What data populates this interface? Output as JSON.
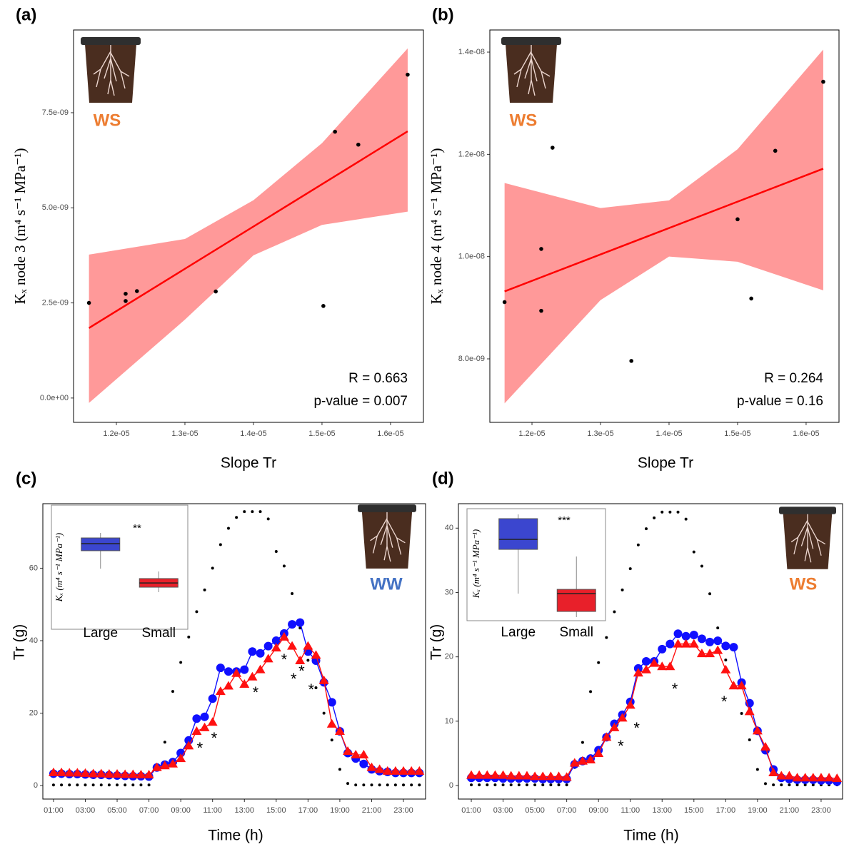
{
  "chart_data": [
    {
      "type": "scatter",
      "panel_label": "(a)",
      "xlabel": "Slope Tr",
      "ylabel": "Kₓ node 3 (m⁴ s⁻¹ MPa⁻¹)",
      "treatment": "WS",
      "treatment_color": "#ed7d31",
      "x": [
        1.16e-05,
        1.2135e-05,
        1.2135e-05,
        1.23e-05,
        1.345e-05,
        1.502e-05,
        1.519e-05,
        1.553e-05,
        1.625e-05
      ],
      "values": [
        2.5e-09,
        2.74e-09,
        2.55e-09,
        2.81e-09,
        2.8e-09,
        2.42e-09,
        7e-09,
        6.66e-09,
        8.5e-09
      ],
      "color": "#000000",
      "fit": {
        "color": "#ff0000",
        "band_color": "#ff9999",
        "x": [
          1.16e-05,
          1.625e-05
        ],
        "values": [
          1.84e-09,
          7.01e-09
        ],
        "band_x": [
          1.16e-05,
          1.3e-05,
          1.4e-05,
          1.5e-05,
          1.625e-05
        ],
        "band_upper": [
          3.77e-09,
          4.18e-09,
          5.2e-09,
          6.7e-09,
          9.19e-09
        ],
        "band_lower": [
          -1.3e-10,
          2.06e-09,
          3.75e-09,
          4.55e-09,
          4.9e-09
        ]
      },
      "annotations": [
        "R = 0.663",
        "p-value = 0.007"
      ],
      "xlim": [
        1.1375e-05,
        1.648e-05
      ],
      "ylim": [
        -6.4e-10,
        9.675e-09
      ],
      "xticks": [
        {
          "value": 1.2e-05,
          "label": "1.2e-05"
        },
        {
          "value": 1.3e-05,
          "label": "1.3e-05"
        },
        {
          "value": 1.4e-05,
          "label": "1.4e-05"
        },
        {
          "value": 1.5e-05,
          "label": "1.5e-05"
        },
        {
          "value": 1.6e-05,
          "label": "1.6e-05"
        }
      ],
      "yticks": [
        {
          "value": 0,
          "label": "0.0e+00"
        },
        {
          "value": 2.5e-09,
          "label": "2.5e-09"
        },
        {
          "value": 5e-09,
          "label": "5.0e-09"
        },
        {
          "value": 7.5e-09,
          "label": "7.5e-09"
        }
      ]
    },
    {
      "type": "scatter",
      "panel_label": "(b)",
      "xlabel": "Slope Tr",
      "ylabel": "Kₓ node 4 (m⁴ s⁻¹ MPa⁻¹)",
      "treatment": "WS",
      "treatment_color": "#ed7d31",
      "x": [
        1.16e-05,
        1.2135e-05,
        1.2135e-05,
        1.23e-05,
        1.345e-05,
        1.5e-05,
        1.52e-05,
        1.555e-05,
        1.625e-05
      ],
      "values": [
        9.11e-09,
        8.94e-09,
        1.015e-08,
        1.213e-08,
        7.96e-09,
        1.073e-08,
        9.18e-09,
        1.207e-08,
        1.342e-08
      ],
      "color": "#000000",
      "fit": {
        "color": "#ff0000",
        "band_color": "#ff9999",
        "x": [
          1.16e-05,
          1.625e-05
        ],
        "values": [
          9.32e-09,
          1.172e-08
        ],
        "band_x": [
          1.16e-05,
          1.3e-05,
          1.4e-05,
          1.5e-05,
          1.625e-05
        ],
        "band_upper": [
          1.144e-08,
          1.095e-08,
          1.11e-08,
          1.21e-08,
          1.405e-08
        ],
        "band_lower": [
          7.13e-09,
          9.15e-09,
          1e-08,
          9.9e-09,
          9.34e-09
        ]
      },
      "annotations": [
        "R = 0.264",
        "p-value = 0.16"
      ],
      "xlim": [
        1.1385e-05,
        1.648e-05
      ],
      "ylim": [
        6.758e-09,
        1.4433e-08
      ],
      "xticks": [
        {
          "value": 1.2e-05,
          "label": "1.2e-05"
        },
        {
          "value": 1.3e-05,
          "label": "1.3e-05"
        },
        {
          "value": 1.4e-05,
          "label": "1.4e-05"
        },
        {
          "value": 1.5e-05,
          "label": "1.5e-05"
        },
        {
          "value": 1.6e-05,
          "label": "1.6e-05"
        }
      ],
      "yticks": [
        {
          "value": 8e-09,
          "label": "8.0e-09"
        },
        {
          "value": 1e-08,
          "label": "1.0e-08"
        },
        {
          "value": 1.2e-08,
          "label": "1.2e-08"
        },
        {
          "value": 1.4e-08,
          "label": "1.4e-08"
        }
      ]
    },
    {
      "type": "line",
      "panel_label": "(c)",
      "xlabel": "Time (h)",
      "ylabel": "Tr (g)",
      "treatment": "WW",
      "treatment_color": "#4472c4",
      "x": [
        1,
        1.5,
        2,
        2.5,
        3,
        3.5,
        4,
        4.5,
        5,
        5.5,
        6,
        6.5,
        7,
        7.5,
        8,
        8.5,
        9,
        9.5,
        10,
        10.5,
        11,
        11.5,
        12,
        12.5,
        13,
        13.5,
        14,
        14.5,
        15,
        15.5,
        16,
        16.5,
        17,
        17.5,
        18,
        18.5,
        19,
        19.5,
        20,
        20.5,
        21,
        21.5,
        22,
        22.5,
        23,
        23.5,
        24
      ],
      "series": [
        {
          "color": "#000000",
          "marker": "dot",
          "line": false,
          "values": [
            0.2,
            0.2,
            0.2,
            0.2,
            0.2,
            0.2,
            0.2,
            0.2,
            0.2,
            0.2,
            0.2,
            0.2,
            0.2,
            5,
            12,
            26,
            34,
            41,
            48,
            54,
            60,
            66.5,
            71,
            74,
            75.6,
            75.6,
            75.6,
            73.6,
            64.6,
            60.6,
            53,
            43.5,
            34.6,
            27,
            20,
            12.6,
            4.5,
            0.6,
            0.2,
            0.2,
            0.2,
            0.2,
            0.2,
            0.2,
            0.2,
            0.2,
            0.2
          ]
        },
        {
          "color": "#1010ff",
          "marker": "circle",
          "line": true,
          "values": [
            3.3,
            3.3,
            3.2,
            3.2,
            3.1,
            3,
            3,
            2.9,
            2.8,
            2.7,
            2.6,
            2.6,
            2.5,
            5,
            5.8,
            6.5,
            9,
            12.5,
            18.5,
            19,
            24,
            32.5,
            31.5,
            31.5,
            32,
            37,
            36.5,
            38.5,
            40,
            42,
            44.5,
            45,
            37,
            34.5,
            28.5,
            23,
            15,
            9,
            7.5,
            6,
            4.5,
            4,
            3.8,
            3.5,
            3.5,
            3.5,
            3.5
          ]
        },
        {
          "color": "#ff1010",
          "marker": "triangle",
          "line": true,
          "values": [
            3.6,
            3.6,
            3.5,
            3.5,
            3.4,
            3.3,
            3.3,
            3.2,
            3.2,
            3.1,
            3.1,
            3,
            3,
            5,
            5.5,
            6,
            7.5,
            11,
            15,
            16,
            17.5,
            26,
            27.5,
            31,
            28,
            30,
            32,
            35,
            38,
            41,
            38.5,
            34.5,
            38.5,
            36,
            29,
            17,
            15,
            9.5,
            8.5,
            8.5,
            5,
            4.5,
            4,
            4,
            4,
            4,
            4
          ]
        }
      ],
      "significance": [
        {
          "x": 10.2,
          "y": 11,
          "label": "*"
        },
        {
          "x": 11.1,
          "y": 13.8,
          "label": "*"
        },
        {
          "x": 13.7,
          "y": 26.4,
          "label": "*"
        },
        {
          "x": 15.5,
          "y": 35.4,
          "label": "*"
        },
        {
          "x": 16.1,
          "y": 30.1,
          "label": "*"
        },
        {
          "x": 16.6,
          "y": 32.3,
          "label": "*"
        },
        {
          "x": 17.2,
          "y": 27.2,
          "label": "*"
        }
      ],
      "xlim": [
        0.33,
        24.39
      ],
      "ylim": [
        -3.7,
        77.8
      ],
      "xticks": [
        {
          "value": 1,
          "label": "01:00"
        },
        {
          "value": 3,
          "label": "03:00"
        },
        {
          "value": 5,
          "label": "05:00"
        },
        {
          "value": 7,
          "label": "07:00"
        },
        {
          "value": 9,
          "label": "09:00"
        },
        {
          "value": 11,
          "label": "11:00"
        },
        {
          "value": 13,
          "label": "13:00"
        },
        {
          "value": 15,
          "label": "15:00"
        },
        {
          "value": 17,
          "label": "17:00"
        },
        {
          "value": 19,
          "label": "19:00"
        },
        {
          "value": 21,
          "label": "21:00"
        },
        {
          "value": 23,
          "label": "23:00"
        }
      ],
      "yticks": [
        0,
        20,
        40,
        60
      ],
      "inset": {
        "type": "box",
        "ylabel": "Kₓ (m⁴ s⁻¹ MPa⁻¹)",
        "categories": [
          "Large",
          "Small"
        ],
        "colors": [
          "#3b46cf",
          "#e8202a"
        ],
        "ylim": [
          0,
          100
        ],
        "boxes": [
          {
            "whislo": 48.8,
            "q1": 63.9,
            "med": 69.9,
            "q3": 74.7,
            "whishi": 78.9
          },
          {
            "whislo": 28.9,
            "q1": 33.1,
            "med": 36.7,
            "q3": 40.4,
            "whishi": 46.4
          }
        ],
        "significance": "**"
      }
    },
    {
      "type": "line",
      "panel_label": "(d)",
      "xlabel": "Time (h)",
      "ylabel": "Tr (g)",
      "treatment": "WS",
      "treatment_color": "#ed7d31",
      "x": [
        1,
        1.5,
        2,
        2.5,
        3,
        3.5,
        4,
        4.5,
        5,
        5.5,
        6,
        6.5,
        7,
        7.5,
        8,
        8.5,
        9,
        9.5,
        10,
        10.5,
        11,
        11.5,
        12,
        12.5,
        13,
        13.5,
        14,
        14.5,
        15,
        15.5,
        16,
        16.5,
        17,
        17.5,
        18,
        18.5,
        19,
        19.5,
        20,
        20.5,
        21,
        21.5,
        22,
        22.5,
        23,
        23.5,
        24
      ],
      "series": [
        {
          "color": "#000000",
          "marker": "dot",
          "line": false,
          "values": [
            0.1,
            0.1,
            0.1,
            0.1,
            0.1,
            0.1,
            0.1,
            0.1,
            0.1,
            0.1,
            0.1,
            0.1,
            0.1,
            2.8,
            6.7,
            14.6,
            19.1,
            23,
            27,
            30.4,
            33.7,
            37.4,
            39.9,
            41.6,
            42.5,
            42.5,
            42.5,
            41.4,
            36.3,
            34.1,
            29.8,
            24.5,
            19.5,
            15.2,
            11.2,
            7.1,
            2.5,
            0.3,
            0.1,
            0.1,
            0.1,
            0.1,
            0.1,
            0.1,
            0.1,
            0.1,
            0.1
          ]
        },
        {
          "color": "#1010ff",
          "marker": "circle",
          "line": true,
          "values": [
            1.2,
            1.2,
            1.2,
            1.2,
            1.1,
            1.1,
            1.1,
            1.1,
            1.1,
            1,
            1,
            1,
            1,
            3.3,
            3.8,
            4.2,
            5.5,
            7.5,
            9.6,
            11,
            13,
            18.2,
            19.3,
            19.3,
            21.2,
            22,
            23.6,
            23.2,
            23.4,
            22.8,
            22.3,
            22.5,
            21.7,
            21.5,
            16,
            12.8,
            8.5,
            5.5,
            2.5,
            1.2,
            1,
            0.9,
            0.9,
            0.9,
            0.8,
            0.8,
            0.6
          ]
        },
        {
          "color": "#ff1010",
          "marker": "triangle",
          "line": true,
          "values": [
            1.6,
            1.6,
            1.6,
            1.6,
            1.6,
            1.5,
            1.5,
            1.5,
            1.4,
            1.4,
            1.4,
            1.4,
            1.3,
            3.5,
            3.8,
            4,
            5,
            7.5,
            9,
            10.5,
            12.5,
            17.5,
            18,
            19,
            18.5,
            18.5,
            22,
            22,
            22,
            20.5,
            20.5,
            21,
            18,
            15.5,
            15.5,
            11.5,
            8.5,
            6,
            2,
            1.5,
            1.5,
            1.2,
            1.2,
            1.2,
            1.2,
            1.2,
            1.1
          ]
        }
      ],
      "significance": [
        {
          "x": 10.4,
          "y": 6.5,
          "label": "*"
        },
        {
          "x": 11.4,
          "y": 9.3,
          "label": "*"
        },
        {
          "x": 13.8,
          "y": 15.4,
          "label": "*"
        },
        {
          "x": 16.9,
          "y": 13.4,
          "label": "*"
        }
      ],
      "xlim": [
        0.19,
        24.35
      ],
      "ylim": [
        -2.1,
        43.8
      ],
      "xticks": [
        {
          "value": 1,
          "label": "01:00"
        },
        {
          "value": 3,
          "label": "03:00"
        },
        {
          "value": 5,
          "label": "05:00"
        },
        {
          "value": 7,
          "label": "07:00"
        },
        {
          "value": 9,
          "label": "09:00"
        },
        {
          "value": 11,
          "label": "11:00"
        },
        {
          "value": 13,
          "label": "13:00"
        },
        {
          "value": 15,
          "label": "15:00"
        },
        {
          "value": 17,
          "label": "17:00"
        },
        {
          "value": 19,
          "label": "19:00"
        },
        {
          "value": 21,
          "label": "21:00"
        },
        {
          "value": 23,
          "label": "23:00"
        }
      ],
      "yticks": [
        0,
        10,
        20,
        30,
        40
      ],
      "inset": {
        "type": "box",
        "ylabel": "Kₓ (m⁴ s⁻¹ MPa⁻¹)",
        "categories": [
          "Large",
          "Small"
        ],
        "colors": [
          "#3b46cf",
          "#e8202a"
        ],
        "ylim": [
          0,
          100
        ],
        "boxes": [
          {
            "whislo": 22.8,
            "q1": 64.4,
            "med": 73.8,
            "q3": 93.3,
            "whishi": 97.3
          },
          {
            "whislo": 0.7,
            "q1": 6,
            "med": 22.8,
            "q3": 26.8,
            "whishi": 57.7
          }
        ],
        "significance": "***"
      }
    }
  ]
}
